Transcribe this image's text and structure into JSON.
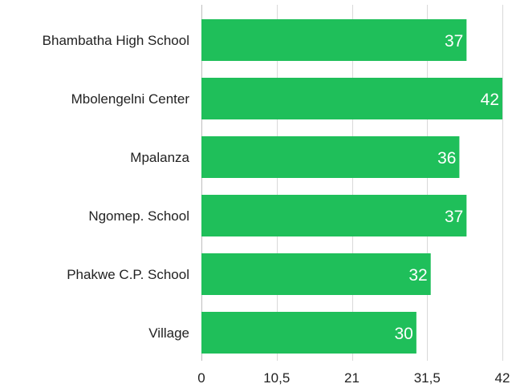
{
  "chart_data": {
    "type": "bar",
    "orientation": "horizontal",
    "categories": [
      "Bhambatha High School",
      "Mbolengelni Center",
      "Mpalanza",
      "Ngomep. School",
      "Phakwe C.P. School",
      "Village"
    ],
    "values": [
      37,
      42,
      36,
      37,
      32,
      30
    ],
    "value_labels": [
      "37",
      "42",
      "36",
      "37",
      "32",
      "30"
    ],
    "xlim": [
      0,
      42
    ],
    "xticks": [
      0,
      10.5,
      21,
      31.5,
      42
    ],
    "xtick_labels": [
      "0",
      "10,5",
      "21",
      "31,5",
      "42"
    ],
    "title": "",
    "xlabel": "",
    "ylabel": "",
    "grid": true,
    "bar_color": "#1fbf5a"
  }
}
